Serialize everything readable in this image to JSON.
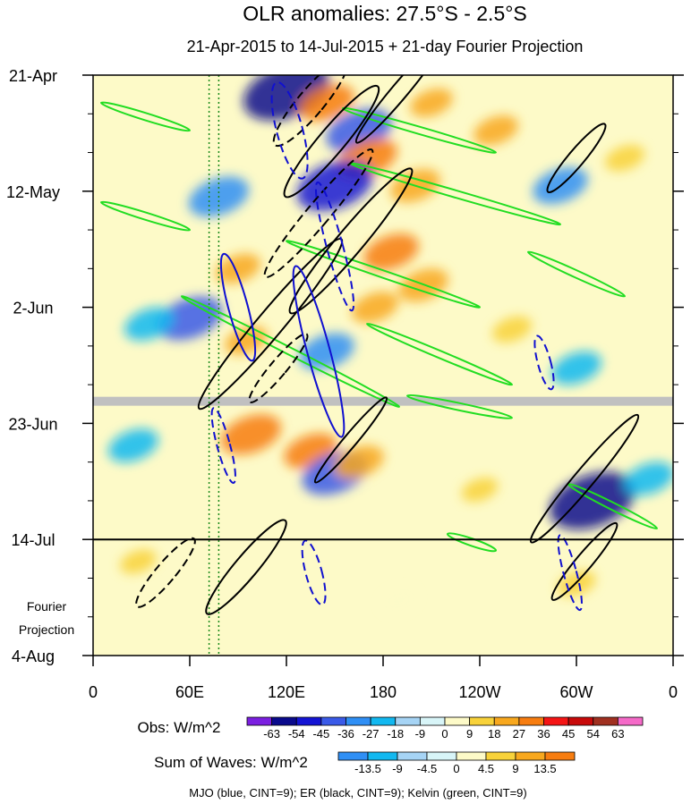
{
  "chart_data": {
    "type": "heatmap",
    "title": "OLR anomalies: 27.5°S - 2.5°S",
    "subtitle": "21-Apr-2015 to 14-Jul-2015 + 21-day Fourier Projection",
    "x_axis": {
      "ticks": [
        "0",
        "60E",
        "120E",
        "180",
        "120W",
        "60W",
        "0"
      ],
      "range_deg_east": [
        0,
        360
      ]
    },
    "y_axis": {
      "ticks": [
        "21-Apr",
        "12-May",
        "2-Jun",
        "23-Jun",
        "14-Jul",
        "4-Aug"
      ],
      "range_days": [
        0,
        105
      ],
      "inverted": true
    },
    "projection_start_day": 84,
    "projection_label": [
      "Fourier",
      "Projection"
    ],
    "missing_data_days": [
      59
    ],
    "phase_lines_lon": [
      72,
      78
    ],
    "obs_colorbar": {
      "label": "Obs: W/m^2",
      "levels": [
        "-63",
        "-54",
        "-45",
        "-36",
        "-27",
        "-18",
        "-9",
        "0",
        "9",
        "18",
        "27",
        "36",
        "45",
        "54",
        "63"
      ],
      "colors": [
        "#7b1fe0",
        "#0a0a8c",
        "#1414d4",
        "#3a5ae8",
        "#2f8ff5",
        "#12b8f0",
        "#a6d4f5",
        "#d8f5f8",
        "#fdfac8",
        "#f8d23a",
        "#f8a81e",
        "#f77d10",
        "#f51515",
        "#c80a0a",
        "#a03020",
        "#f56ac8"
      ]
    },
    "waves_colorbar": {
      "label": "Sum of Waves: W/m^2",
      "levels": [
        "-13.5",
        "-9",
        "-4.5",
        "0",
        "4.5",
        "9",
        "13.5"
      ],
      "colors": [
        "#2f8ff5",
        "#12b8f0",
        "#a6d4f5",
        "#d8f5f8",
        "#fdfac8",
        "#f8d23a",
        "#f8a81e",
        "#f77d10"
      ]
    },
    "legend_note": "MJO (blue, CINT=9); ER (black, CINT=9); Kelvin (green, CINT=9)",
    "wave_colors": {
      "mjo": "#1010d0",
      "er": "#000000",
      "kelvin": "#22dd22"
    },
    "anomaly_features": [
      {
        "lon": 120,
        "day": 3,
        "value": -60
      },
      {
        "lon": 145,
        "day": 5,
        "value": 30
      },
      {
        "lon": 165,
        "day": 10,
        "value": -40
      },
      {
        "lon": 170,
        "day": 15,
        "value": 35
      },
      {
        "lon": 150,
        "day": 20,
        "value": -50
      },
      {
        "lon": 78,
        "day": 22,
        "value": -35
      },
      {
        "lon": 200,
        "day": 20,
        "value": 25
      },
      {
        "lon": 250,
        "day": 10,
        "value": 20
      },
      {
        "lon": 290,
        "day": 20,
        "value": -30
      },
      {
        "lon": 185,
        "day": 32,
        "value": 30
      },
      {
        "lon": 205,
        "day": 38,
        "value": 25
      },
      {
        "lon": 90,
        "day": 35,
        "value": 20
      },
      {
        "lon": 60,
        "day": 44,
        "value": -40
      },
      {
        "lon": 175,
        "day": 42,
        "value": 22
      },
      {
        "lon": 145,
        "day": 50,
        "value": -30
      },
      {
        "lon": 95,
        "day": 48,
        "value": 18
      },
      {
        "lon": 260,
        "day": 46,
        "value": 15
      },
      {
        "lon": 300,
        "day": 53,
        "value": -25
      },
      {
        "lon": 35,
        "day": 45,
        "value": -25
      },
      {
        "lon": 98,
        "day": 65,
        "value": 35
      },
      {
        "lon": 135,
        "day": 68,
        "value": 28
      },
      {
        "lon": 150,
        "day": 72,
        "value": -40
      },
      {
        "lon": 165,
        "day": 70,
        "value": 25
      },
      {
        "lon": 25,
        "day": 67,
        "value": -25
      },
      {
        "lon": 310,
        "day": 77,
        "value": -60
      },
      {
        "lon": 345,
        "day": 73,
        "value": -25
      },
      {
        "lon": 240,
        "day": 75,
        "value": 12
      },
      {
        "lon": 210,
        "day": 5,
        "value": 18
      },
      {
        "lon": 330,
        "day": 15,
        "value": 15
      },
      {
        "lon": 28,
        "day": 88,
        "value": 12
      },
      {
        "lon": 300,
        "day": 92,
        "value": 14
      },
      {
        "lon": 190,
        "day": 95,
        "value": 8
      }
    ],
    "kelvin_contours": [
      {
        "lon0": 5,
        "day0": 5,
        "lon1": 60,
        "day1": 10
      },
      {
        "lon0": 5,
        "day0": 23,
        "lon1": 60,
        "day1": 28
      },
      {
        "lon0": 155,
        "day0": 6,
        "lon1": 250,
        "day1": 14
      },
      {
        "lon0": 160,
        "day0": 16,
        "lon1": 290,
        "day1": 27
      },
      {
        "lon0": 270,
        "day0": 32,
        "lon1": 330,
        "day1": 40
      },
      {
        "lon0": 120,
        "day0": 30,
        "lon1": 240,
        "day1": 42
      },
      {
        "lon0": 55,
        "day0": 40,
        "lon1": 190,
        "day1": 60
      },
      {
        "lon0": 170,
        "day0": 45,
        "lon1": 260,
        "day1": 56
      },
      {
        "lon0": 195,
        "day0": 58,
        "lon1": 260,
        "day1": 62
      },
      {
        "lon0": 295,
        "day0": 74,
        "lon1": 350,
        "day1": 82
      },
      {
        "lon0": 220,
        "day0": 83,
        "lon1": 250,
        "day1": 86
      }
    ],
    "er_contours": [
      {
        "lon": 148,
        "day": 12,
        "rx": 8,
        "ry": 13,
        "sign": "positive"
      },
      {
        "lon": 135,
        "day": 5,
        "rx": 8,
        "ry": 10,
        "sign": "negative"
      },
      {
        "lon": 140,
        "day": 25,
        "rx": 7,
        "ry": 15,
        "sign": "negative"
      },
      {
        "lon": 160,
        "day": 30,
        "rx": 8,
        "ry": 17,
        "sign": "positive"
      },
      {
        "lon": 110,
        "day": 45,
        "rx": 8,
        "ry": 20,
        "sign": "positive"
      },
      {
        "lon": 115,
        "day": 53,
        "rx": 5,
        "ry": 8,
        "sign": "negative"
      },
      {
        "lon": 160,
        "day": 66,
        "rx": 4,
        "ry": 10,
        "sign": "positive"
      },
      {
        "lon": 305,
        "day": 73,
        "rx": 6,
        "ry": 15,
        "sign": "positive"
      },
      {
        "lon": 95,
        "day": 89,
        "rx": 7,
        "ry": 11,
        "sign": "positive"
      },
      {
        "lon": 45,
        "day": 90,
        "rx": 6,
        "ry": 8,
        "sign": "negative"
      },
      {
        "lon": 305,
        "day": 88,
        "rx": 5,
        "ry": 9,
        "sign": "positive"
      },
      {
        "lon": 190,
        "day": 3,
        "rx": 5,
        "ry": 12,
        "sign": "positive"
      },
      {
        "lon": 300,
        "day": 15,
        "rx": 5,
        "ry": 8,
        "sign": "positive"
      }
    ],
    "mjo_contours": [
      {
        "lon": 122,
        "day": 10,
        "rx": 8,
        "ry": 9,
        "sign": "negative"
      },
      {
        "lon": 140,
        "day": 50,
        "rx": 7,
        "ry": 16,
        "sign": "positive"
      },
      {
        "lon": 90,
        "day": 42,
        "rx": 6,
        "ry": 10,
        "sign": "positive"
      },
      {
        "lon": 150,
        "day": 31,
        "rx": 5,
        "ry": 12,
        "sign": "negative"
      },
      {
        "lon": 81,
        "day": 67,
        "rx": 4,
        "ry": 7,
        "sign": "negative"
      },
      {
        "lon": 280,
        "day": 52,
        "rx": 4,
        "ry": 5,
        "sign": "negative"
      },
      {
        "lon": 296,
        "day": 90,
        "rx": 4,
        "ry": 7,
        "sign": "negative"
      },
      {
        "lon": 137,
        "day": 90,
        "rx": 5,
        "ry": 6,
        "sign": "negative"
      }
    ]
  }
}
